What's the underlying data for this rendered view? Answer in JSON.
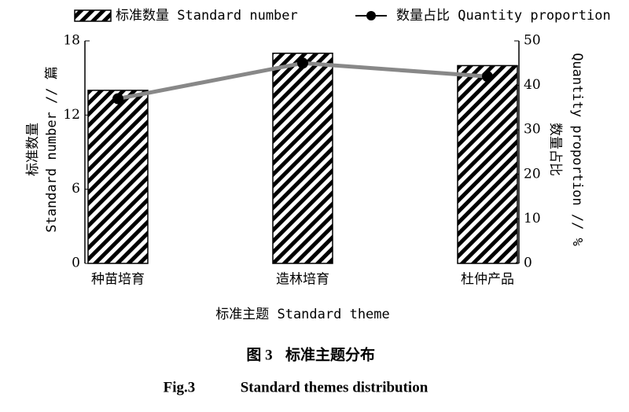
{
  "chart_data": {
    "type": "combo",
    "categories": [
      "种苗培育",
      "造林培育",
      "杜仲产品"
    ],
    "series": [
      {
        "name": "标准数量 Standard number",
        "type": "bar",
        "color": "#000000",
        "values": [
          14,
          17,
          16
        ]
      },
      {
        "name": "数量占比 Quantity proportion",
        "type": "line",
        "axis": "y2",
        "color": "#888888",
        "values": [
          37,
          45,
          42
        ]
      }
    ],
    "ylim": [
      0,
      18
    ],
    "yticks": [
      0,
      6,
      12,
      18
    ],
    "y2lim": [
      0,
      50
    ],
    "y2ticks": [
      0,
      10,
      20,
      30,
      40,
      50
    ],
    "ylabel": [
      "标准数量",
      "Standard number // 篇"
    ],
    "y2label": [
      "数量占比",
      "Quantity proportion // %"
    ],
    "xlabel": "标准主题 Standard theme"
  },
  "figure": {
    "label_cn": "图 3",
    "title_cn": "标准主题分布",
    "label_en": "Fig.3",
    "title_en": "Standard themes distribution"
  }
}
